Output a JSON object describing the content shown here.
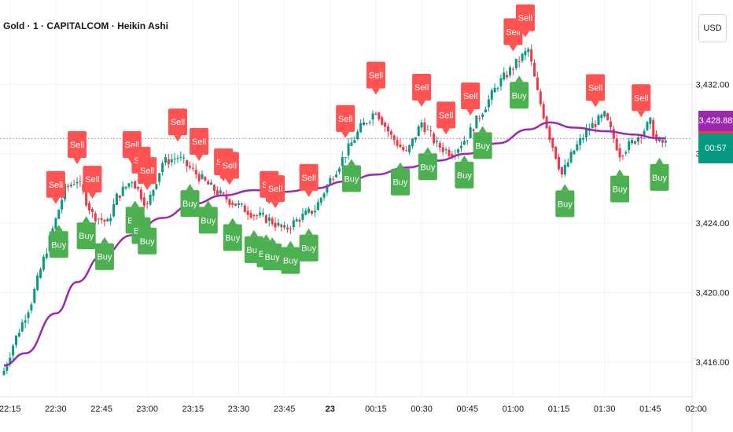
{
  "header": {
    "title": "Gold · 1 · CAPITALCOM · Heikin Ashi",
    "currency": "USD"
  },
  "price_tags": {
    "ma_price": "3,428.88",
    "countdown": "00:57"
  },
  "colors": {
    "up": "#089981",
    "down": "#f23645",
    "ma": "#9c27b0",
    "buy_label": "#4caf50",
    "sell_label": "#ff5252",
    "grid": "#f0f3fa",
    "text": "#131722"
  },
  "chart_data": {
    "type": "candlestick",
    "symbol": "Gold · 1 · CAPITALCOM · Heikin Ashi",
    "y_axis": {
      "range": [
        3414.0,
        3435.5
      ],
      "ticks": [
        3432,
        3428,
        3424,
        3420,
        3416
      ],
      "tick_labels": [
        "3,432.00",
        "3,428.00",
        "3,424.00",
        "3,420.00",
        "3,416.00"
      ]
    },
    "x_axis": {
      "start": "22:13",
      "end": "02:00",
      "tick_labels": [
        "22:15",
        "22:30",
        "22:45",
        "23:00",
        "23:15",
        "23:30",
        "23:45",
        "23",
        "00:15",
        "00:30",
        "00:45",
        "01:00",
        "01:15",
        "01:30",
        "01:45",
        "02:00"
      ],
      "tick_times": [
        "22:15",
        "22:30",
        "22:45",
        "23:00",
        "23:15",
        "23:30",
        "23:45",
        "00:00",
        "00:15",
        "00:30",
        "00:45",
        "01:00",
        "01:15",
        "01:30",
        "01:45",
        "02:00"
      ]
    },
    "series": [
      {
        "name": "",
        "type": "moving-average",
        "points": [
          [
            "22:13",
            3415.8
          ],
          [
            "22:20",
            3416.5
          ],
          [
            "22:30",
            3418.8
          ],
          [
            "22:37",
            3420.6
          ],
          [
            "22:45",
            3422.1
          ],
          [
            "22:55",
            3423.3
          ],
          [
            "23:05",
            3424.3
          ],
          [
            "23:15",
            3425.1
          ],
          [
            "23:25",
            3425.6
          ],
          [
            "23:35",
            3425.9
          ],
          [
            "23:45",
            3425.8
          ],
          [
            "23:55",
            3426.0
          ],
          [
            "00:05",
            3426.4
          ],
          [
            "00:15",
            3426.8
          ],
          [
            "00:25",
            3427.2
          ],
          [
            "00:35",
            3427.6
          ],
          [
            "00:45",
            3428.0
          ],
          [
            "00:55",
            3428.6
          ],
          [
            "01:05",
            3429.4
          ],
          [
            "01:12",
            3429.8
          ],
          [
            "01:20",
            3429.5
          ],
          [
            "01:30",
            3429.3
          ],
          [
            "01:40",
            3429.1
          ],
          [
            "01:47",
            3428.9
          ],
          [
            "01:50",
            3428.88
          ]
        ]
      },
      {
        "name": "",
        "type": "candles",
        "anchors": [
          [
            "22:13",
            3415.5
          ],
          [
            "22:16",
            3417.0
          ],
          [
            "22:22",
            3419.5
          ],
          [
            "22:27",
            3422.5
          ],
          [
            "22:30",
            3424.2
          ],
          [
            "22:33",
            3426.0
          ],
          [
            "22:37",
            3426.5
          ],
          [
            "22:42",
            3424.5
          ],
          [
            "22:47",
            3424.0
          ],
          [
            "22:50",
            3425.5
          ],
          [
            "22:55",
            3426.5
          ],
          [
            "23:00",
            3425.0
          ],
          [
            "23:05",
            3427.5
          ],
          [
            "23:10",
            3427.8
          ],
          [
            "23:15",
            3427.0
          ],
          [
            "23:20",
            3426.2
          ],
          [
            "23:25",
            3425.5
          ],
          [
            "23:30",
            3425.0
          ],
          [
            "23:35",
            3424.5
          ],
          [
            "23:40",
            3424.2
          ],
          [
            "23:45",
            3423.6
          ],
          [
            "23:50",
            3424.3
          ],
          [
            "23:55",
            3424.8
          ],
          [
            "00:00",
            3426.5
          ],
          [
            "00:05",
            3428.0
          ],
          [
            "00:10",
            3429.5
          ],
          [
            "00:15",
            3430.5
          ],
          [
            "00:20",
            3429.0
          ],
          [
            "00:25",
            3428.0
          ],
          [
            "00:30",
            3429.8
          ],
          [
            "00:35",
            3428.5
          ],
          [
            "00:40",
            3428.0
          ],
          [
            "00:45",
            3429.0
          ],
          [
            "00:50",
            3430.5
          ],
          [
            "00:55",
            3432.0
          ],
          [
            "01:00",
            3433.0
          ],
          [
            "01:05",
            3434.0
          ],
          [
            "01:08",
            3431.5
          ],
          [
            "01:12",
            3429.0
          ],
          [
            "01:16",
            3426.8
          ],
          [
            "01:20",
            3428.2
          ],
          [
            "01:25",
            3429.5
          ],
          [
            "01:30",
            3430.2
          ],
          [
            "01:35",
            3428.0
          ],
          [
            "01:40",
            3428.8
          ],
          [
            "01:45",
            3429.8
          ],
          [
            "01:47",
            3428.7
          ],
          [
            "01:50",
            3428.6
          ]
        ]
      }
    ],
    "signals": [
      {
        "type": "Sell",
        "time": "22:30"
      },
      {
        "type": "Sell",
        "time": "22:37"
      },
      {
        "type": "Sell",
        "time": "22:42"
      },
      {
        "type": "Sell",
        "time": "22:55"
      },
      {
        "type": "Sell",
        "time": "22:58"
      },
      {
        "type": "Sell",
        "time": "23:00"
      },
      {
        "type": "Sell",
        "time": "23:10"
      },
      {
        "type": "Sell",
        "time": "23:17"
      },
      {
        "type": "Sell",
        "time": "23:25"
      },
      {
        "type": "Sell",
        "time": "23:27"
      },
      {
        "type": "Sell",
        "time": "23:40"
      },
      {
        "type": "Sell",
        "time": "23:42"
      },
      {
        "type": "Sell",
        "time": "23:53"
      },
      {
        "type": "Sell",
        "time": "00:05"
      },
      {
        "type": "Sell",
        "time": "00:15"
      },
      {
        "type": "Sell",
        "time": "00:30"
      },
      {
        "type": "Sell",
        "time": "00:38"
      },
      {
        "type": "Sell",
        "time": "00:46"
      },
      {
        "type": "Sell",
        "time": "01:00"
      },
      {
        "type": "Sell",
        "time": "01:04"
      },
      {
        "type": "Sell",
        "time": "01:27"
      },
      {
        "type": "Sell",
        "time": "01:42"
      },
      {
        "type": "Buy",
        "time": "22:31"
      },
      {
        "type": "Buy",
        "time": "22:40"
      },
      {
        "type": "Buy",
        "time": "22:46"
      },
      {
        "type": "Buy",
        "time": "22:56"
      },
      {
        "type": "Buy",
        "time": "22:58"
      },
      {
        "type": "Buy",
        "time": "23:00"
      },
      {
        "type": "Buy",
        "time": "23:14"
      },
      {
        "type": "Buy",
        "time": "23:20"
      },
      {
        "type": "Buy",
        "time": "23:28"
      },
      {
        "type": "Buy",
        "time": "23:35"
      },
      {
        "type": "Buy",
        "time": "23:39"
      },
      {
        "type": "Buy",
        "time": "23:41"
      },
      {
        "type": "Buy",
        "time": "23:47"
      },
      {
        "type": "Buy",
        "time": "23:53"
      },
      {
        "type": "Buy",
        "time": "00:07"
      },
      {
        "type": "Buy",
        "time": "00:23"
      },
      {
        "type": "Buy",
        "time": "00:32"
      },
      {
        "type": "Buy",
        "time": "00:44"
      },
      {
        "type": "Buy",
        "time": "00:50"
      },
      {
        "type": "Buy",
        "time": "01:02"
      },
      {
        "type": "Buy",
        "time": "01:17"
      },
      {
        "type": "Buy",
        "time": "01:35"
      },
      {
        "type": "Buy",
        "time": "01:48"
      }
    ]
  }
}
